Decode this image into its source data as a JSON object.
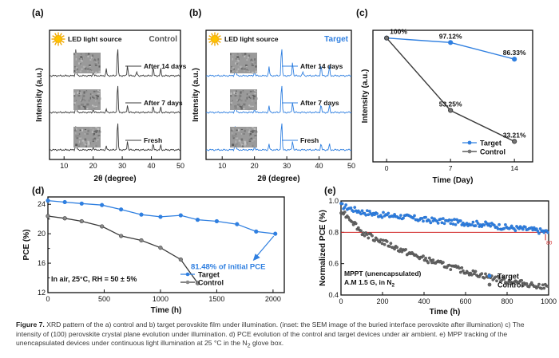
{
  "colors": {
    "target": "#2f7fe0",
    "control": "#3a3a3a",
    "inset": "#8a8a8a",
    "threshold": "#d02020"
  },
  "chart_data": [
    {
      "panel": "(a)",
      "type": "line",
      "title": "Control",
      "xlabel": "2θ (degree)",
      "ylabel": "Intensity (a.u.)",
      "xlim": [
        5,
        50
      ],
      "xticks": [
        10,
        20,
        30,
        40,
        50
      ],
      "legend_label": "LED light source",
      "series": [
        {
          "name": "After 14 days",
          "color": "control",
          "peaks": [
            [
              14.1,
              1.0
            ],
            [
              20.0,
              0.18
            ],
            [
              24.5,
              0.22
            ],
            [
              28.4,
              1.0
            ],
            [
              31.8,
              0.35
            ],
            [
              35.0,
              0.12
            ],
            [
              40.6,
              0.28
            ],
            [
              43.2,
              0.22
            ]
          ]
        },
        {
          "name": "After 7 days",
          "color": "control",
          "peaks": [
            [
              14.1,
              0.75
            ],
            [
              20.0,
              0.12
            ],
            [
              24.5,
              0.1
            ],
            [
              28.4,
              1.0
            ],
            [
              31.8,
              0.25
            ],
            [
              40.6,
              0.2
            ],
            [
              43.2,
              0.16
            ]
          ]
        },
        {
          "name": "Fresh",
          "color": "control",
          "peaks": [
            [
              14.1,
              0.9
            ],
            [
              20.0,
              0.1
            ],
            [
              24.5,
              0.12
            ],
            [
              28.4,
              1.0
            ],
            [
              31.8,
              0.3
            ],
            [
              40.6,
              0.2
            ],
            [
              43.2,
              0.15
            ]
          ]
        }
      ]
    },
    {
      "panel": "(b)",
      "type": "line",
      "title": "Target",
      "xlabel": "2θ (degree)",
      "ylabel": "Intensity (a.u.)",
      "xlim": [
        5,
        50
      ],
      "xticks": [
        10,
        20,
        30,
        40,
        50
      ],
      "legend_label": "LED light source",
      "series": [
        {
          "name": "After 14 days",
          "color": "target",
          "peaks": [
            [
              14.1,
              0.8
            ],
            [
              20.0,
              0.15
            ],
            [
              24.5,
              0.28
            ],
            [
              28.4,
              1.0
            ],
            [
              31.8,
              0.45
            ],
            [
              35.0,
              0.12
            ],
            [
              40.6,
              0.35
            ],
            [
              43.2,
              0.3
            ]
          ]
        },
        {
          "name": "After 7 days",
          "color": "target",
          "peaks": [
            [
              14.1,
              0.85
            ],
            [
              20.0,
              0.12
            ],
            [
              24.5,
              0.2
            ],
            [
              28.4,
              1.0
            ],
            [
              31.8,
              0.35
            ],
            [
              40.6,
              0.25
            ],
            [
              43.2,
              0.22
            ]
          ]
        },
        {
          "name": "Fresh",
          "color": "target",
          "peaks": [
            [
              14.1,
              0.9
            ],
            [
              20.0,
              0.12
            ],
            [
              24.5,
              0.18
            ],
            [
              28.4,
              1.0
            ],
            [
              31.8,
              0.3
            ],
            [
              40.6,
              0.2
            ],
            [
              43.2,
              0.18
            ]
          ]
        }
      ]
    },
    {
      "panel": "(c)",
      "type": "line",
      "xlabel": "Time (Day)",
      "ylabel": "Intensity (a.u.)",
      "x": [
        0,
        7,
        14
      ],
      "xticks": [
        0,
        7,
        14
      ],
      "series": [
        {
          "name": "Target",
          "color": "target",
          "values": [
            100,
            97.12,
            86.33
          ],
          "labels": [
            "100%",
            "97.12%",
            "86.33%"
          ]
        },
        {
          "name": "Control",
          "color": "control",
          "values": [
            100,
            53.25,
            33.21
          ],
          "labels": [
            "",
            "53.25%",
            "33.21%"
          ]
        }
      ],
      "ylim": [
        20,
        105
      ]
    },
    {
      "panel": "(d)",
      "type": "line",
      "xlabel": "Time (h)",
      "ylabel": "PCE (%)",
      "xlim": [
        0,
        2100
      ],
      "ylim": [
        12,
        25
      ],
      "xticks": [
        0,
        500,
        1000,
        1500,
        2000
      ],
      "yticks": [
        12,
        16,
        20,
        24
      ],
      "yticks_minor": [
        14,
        18,
        22
      ],
      "annotation": "81.48% of initial PCE",
      "condition": "In air, 25°C, RH = 50 ± 5%",
      "series": [
        {
          "name": "Target",
          "color": "target",
          "x": [
            0,
            150,
            300,
            480,
            650,
            830,
            1000,
            1180,
            1330,
            1500,
            1680,
            1850,
            2020
          ],
          "y": [
            24.5,
            24.3,
            24.1,
            23.9,
            23.3,
            22.6,
            22.3,
            22.5,
            21.9,
            21.7,
            21.3,
            20.3,
            20.0
          ]
        },
        {
          "name": "Control",
          "color": "control",
          "x": [
            0,
            150,
            300,
            480,
            650,
            830,
            1000,
            1180,
            1330
          ],
          "y": [
            22.4,
            22.1,
            21.7,
            21.0,
            19.7,
            19.1,
            18.1,
            16.5,
            13.3
          ]
        }
      ]
    },
    {
      "panel": "(e)",
      "type": "scatter",
      "xlabel": "Time (h)",
      "ylabel": "Normalized PCE (%)",
      "xlim": [
        0,
        1000
      ],
      "ylim": [
        0.4,
        1.0
      ],
      "xticks": [
        0,
        200,
        400,
        600,
        800,
        1000
      ],
      "yticks": [
        0.4,
        0.6,
        0.8,
        1.0
      ],
      "threshold": 0.8,
      "threshold_label": "80",
      "condition_line1": "MPPT (unencapsulated)",
      "condition_line2": "A.M 1.5 G, in N",
      "condition_sub": "2",
      "series": [
        {
          "name": "Target",
          "color": "target",
          "x": [
            0,
            50,
            100,
            200,
            300,
            400,
            500,
            600,
            700,
            800,
            900,
            1000
          ],
          "y": [
            0.97,
            0.95,
            0.93,
            0.91,
            0.9,
            0.88,
            0.87,
            0.86,
            0.85,
            0.83,
            0.82,
            0.8
          ]
        },
        {
          "name": "Control",
          "color": "control",
          "x": [
            0,
            50,
            100,
            200,
            300,
            400,
            500,
            600,
            700,
            800,
            900,
            1000
          ],
          "y": [
            0.94,
            0.88,
            0.8,
            0.74,
            0.68,
            0.63,
            0.59,
            0.55,
            0.52,
            0.49,
            0.47,
            0.45
          ]
        }
      ]
    }
  ],
  "caption": {
    "label": "Figure 7.",
    "text": "XRD pattern of the a) control and b) target perovskite film under illumination. (inset: the SEM image of the buried interface perovskite after illumination) c) The intensity of (100) perovskite crystal plane evolution under illumination. d) PCE evolution of the control and target devices under air ambient. e) MPP tracking of the unencapsulated devices under continuous light illumination at 25 °C in the N",
    "sub": "2",
    "tail": " glove box."
  }
}
